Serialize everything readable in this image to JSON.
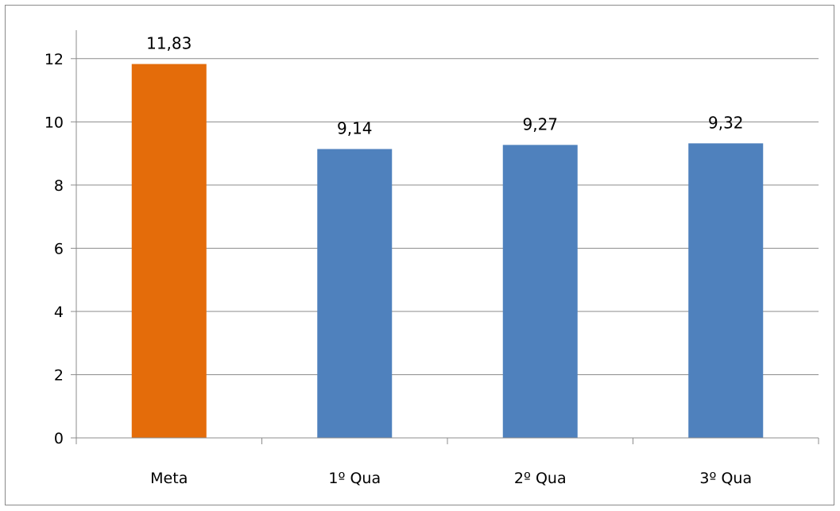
{
  "chart_data": {
    "type": "bar",
    "categories": [
      "Meta",
      "1º Qua",
      "2º Qua",
      "3º Qua"
    ],
    "values": [
      11.83,
      9.14,
      9.27,
      9.32
    ],
    "data_labels": [
      "11,83",
      "9,14",
      "9,27",
      "9,32"
    ],
    "bar_colors": [
      "#E46C0A",
      "#4F81BD",
      "#4F81BD",
      "#4F81BD"
    ],
    "y_ticks": [
      0,
      2,
      4,
      6,
      8,
      10,
      12
    ],
    "ylim": [
      0,
      12.9
    ],
    "grid": true,
    "legend": "none"
  }
}
